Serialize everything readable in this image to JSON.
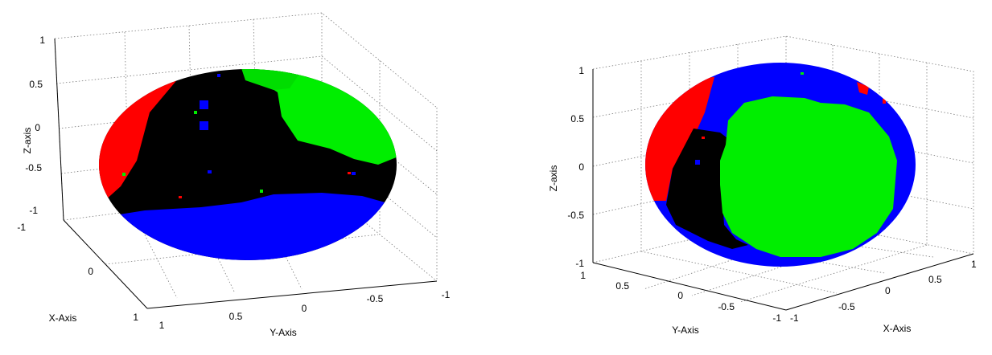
{
  "chart_data": [
    {
      "type": "surface",
      "title": "",
      "xlabel": "X-Axis",
      "ylabel": "Y-Axis",
      "zlabel": "Z-axis",
      "xlim": [
        -1,
        1
      ],
      "ylim": [
        -1,
        1
      ],
      "zlim": [
        -1,
        1
      ],
      "x_ticks": [
        "-1",
        "0",
        "1"
      ],
      "y_ticks": [
        "1",
        "0.5",
        "0",
        "-0.5",
        "-1"
      ],
      "z_ticks": [
        "1",
        "0.5",
        "0",
        "-0.5",
        "-1"
      ],
      "grid": true,
      "surface": "unit sphere",
      "region_colors": {
        "red": "#ff0000",
        "green": "#00ee00",
        "blue": "#0000ff",
        "black": "#000000"
      }
    },
    {
      "type": "surface",
      "title": "",
      "xlabel": "X-Axis",
      "ylabel": "Y-Axis",
      "zlabel": "Z-axis",
      "xlim": [
        -1,
        1
      ],
      "ylim": [
        -1,
        1
      ],
      "zlim": [
        -1,
        1
      ],
      "x_ticks": [
        "-1",
        "-0.5",
        "0",
        "0.5",
        "1"
      ],
      "y_ticks": [
        "1",
        "0.5",
        "0",
        "-0.5",
        "-1"
      ],
      "z_ticks": [
        "1",
        "0.5",
        "0",
        "-0.5",
        "-1"
      ],
      "grid": true,
      "surface": "unit sphere",
      "region_colors": {
        "red": "#ff0000",
        "green": "#00ee00",
        "blue": "#0000ff",
        "black": "#000000"
      }
    }
  ]
}
